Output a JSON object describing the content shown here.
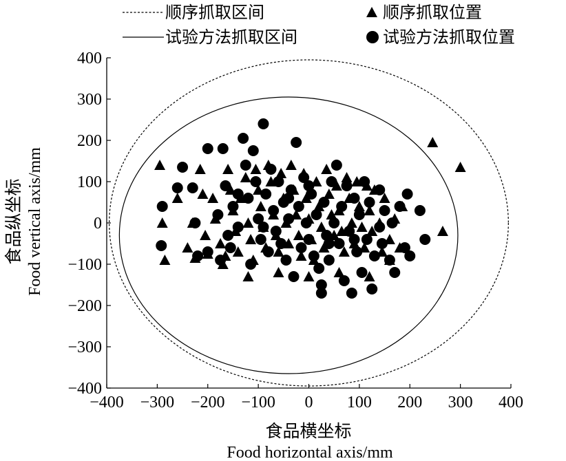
{
  "chart_data": {
    "type": "scatter",
    "title": "",
    "xlabel_cn": "食品横坐标",
    "xlabel_en": "Food horizontal axis/mm",
    "ylabel_cn": "食品纵坐标",
    "ylabel_en": "Food vertical axis/mm",
    "xlim": [
      -400,
      400
    ],
    "ylim": [
      -400,
      400
    ],
    "xticks": [
      -400,
      -300,
      -200,
      -100,
      0,
      100,
      200,
      300,
      400
    ],
    "yticks": [
      -400,
      -300,
      -200,
      -100,
      0,
      100,
      200,
      300,
      400
    ],
    "grid": false,
    "legend_position": "top",
    "legend": {
      "dashed_circle": "顺序抓取区间",
      "triangle": "顺序抓取位置",
      "solid_circle": "试验方法抓取区间",
      "dot": "试验方法抓取位置"
    },
    "regions": [
      {
        "name": "顺序抓取区间",
        "style": "dashed",
        "cx": 0,
        "cy": 0,
        "r": 395
      },
      {
        "name": "试验方法抓取区间",
        "style": "solid",
        "cx": -40,
        "cy": -30,
        "r": 335
      }
    ],
    "series": [
      {
        "name": "顺序抓取位置",
        "marker": "triangle",
        "points": [
          [
            -295,
            140
          ],
          [
            -290,
            0
          ],
          [
            -285,
            -90
          ],
          [
            -260,
            60
          ],
          [
            -240,
            -60
          ],
          [
            -230,
            0
          ],
          [
            -225,
            -85
          ],
          [
            -215,
            130
          ],
          [
            -210,
            70
          ],
          [
            -205,
            -30
          ],
          [
            -200,
            -75
          ],
          [
            -190,
            60
          ],
          [
            -185,
            10
          ],
          [
            -175,
            -50
          ],
          [
            -165,
            -80
          ],
          [
            -160,
            130
          ],
          [
            -155,
            80
          ],
          [
            -150,
            30
          ],
          [
            -145,
            -20
          ],
          [
            -140,
            -70
          ],
          [
            -135,
            60
          ],
          [
            -125,
            110
          ],
          [
            -120,
            0
          ],
          [
            -115,
            -40
          ],
          [
            -110,
            -90
          ],
          [
            -105,
            130
          ],
          [
            -100,
            80
          ],
          [
            -95,
            40
          ],
          [
            -90,
            -10
          ],
          [
            -85,
            -60
          ],
          [
            -80,
            140
          ],
          [
            -75,
            100
          ],
          [
            -70,
            20
          ],
          [
            -65,
            -30
          ],
          [
            -60,
            -70
          ],
          [
            -55,
            120
          ],
          [
            -50,
            60
          ],
          [
            -45,
            0
          ],
          [
            -40,
            -50
          ],
          [
            -35,
            140
          ],
          [
            -30,
            80
          ],
          [
            -25,
            20
          ],
          [
            -20,
            -30
          ],
          [
            -15,
            -80
          ],
          [
            -10,
            120
          ],
          [
            -5,
            60
          ],
          [
            0,
            10
          ],
          [
            5,
            -40
          ],
          [
            10,
            -90
          ],
          [
            15,
            100
          ],
          [
            20,
            40
          ],
          [
            25,
            -10
          ],
          [
            30,
            -60
          ],
          [
            35,
            130
          ],
          [
            40,
            70
          ],
          [
            45,
            20
          ],
          [
            50,
            -30
          ],
          [
            55,
            90
          ],
          [
            60,
            30
          ],
          [
            65,
            -20
          ],
          [
            70,
            -70
          ],
          [
            75,
            110
          ],
          [
            80,
            60
          ],
          [
            85,
            0
          ],
          [
            90,
            -50
          ],
          [
            95,
            100
          ],
          [
            100,
            40
          ],
          [
            105,
            -10
          ],
          [
            110,
            -60
          ],
          [
            115,
            90
          ],
          [
            120,
            30
          ],
          [
            125,
            -20
          ],
          [
            130,
            80
          ],
          [
            140,
            0
          ],
          [
            145,
            -70
          ],
          [
            150,
            60
          ],
          [
            160,
            -40
          ],
          [
            170,
            10
          ],
          [
            180,
            -60
          ],
          [
            185,
            40
          ],
          [
            245,
            195
          ],
          [
            265,
            -20
          ],
          [
            300,
            135
          ],
          [
            -170,
            -100
          ],
          [
            -120,
            -130
          ],
          [
            -60,
            -120
          ],
          [
            0,
            -130
          ],
          [
            60,
            -120
          ],
          [
            120,
            -130
          ],
          [
            160,
            -90
          ]
        ]
      },
      {
        "name": "试验方法抓取位置",
        "marker": "dot",
        "points": [
          [
            -290,
            40
          ],
          [
            -292,
            -55
          ],
          [
            -260,
            85
          ],
          [
            -250,
            135
          ],
          [
            -230,
            85
          ],
          [
            -225,
            0
          ],
          [
            -220,
            -80
          ],
          [
            -200,
            180
          ],
          [
            -180,
            20
          ],
          [
            -175,
            -90
          ],
          [
            -170,
            180
          ],
          [
            -165,
            90
          ],
          [
            -160,
            -30
          ],
          [
            -155,
            -60
          ],
          [
            -150,
            40
          ],
          [
            -140,
            -10
          ],
          [
            -130,
            205
          ],
          [
            -125,
            140
          ],
          [
            -120,
            60
          ],
          [
            -115,
            -100
          ],
          [
            -110,
            175
          ],
          [
            -105,
            100
          ],
          [
            -100,
            10
          ],
          [
            -95,
            -40
          ],
          [
            -90,
            240
          ],
          [
            -85,
            70
          ],
          [
            -80,
            -70
          ],
          [
            -75,
            130
          ],
          [
            -70,
            30
          ],
          [
            -65,
            -20
          ],
          [
            -60,
            100
          ],
          [
            -55,
            -50
          ],
          [
            -50,
            50
          ],
          [
            -45,
            -90
          ],
          [
            -40,
            10
          ],
          [
            -35,
            80
          ],
          [
            -30,
            -130
          ],
          [
            -25,
            195
          ],
          [
            -20,
            40
          ],
          [
            -15,
            -60
          ],
          [
            -10,
            110
          ],
          [
            -5,
            0
          ],
          [
            0,
            -40
          ],
          [
            5,
            70
          ],
          [
            10,
            -80
          ],
          [
            15,
            20
          ],
          [
            20,
            -110
          ],
          [
            25,
            -150
          ],
          [
            25,
            -170
          ],
          [
            30,
            50
          ],
          [
            35,
            -30
          ],
          [
            40,
            -90
          ],
          [
            45,
            100
          ],
          [
            50,
            0
          ],
          [
            55,
            140
          ],
          [
            60,
            -50
          ],
          [
            65,
            40
          ],
          [
            70,
            -140
          ],
          [
            75,
            90
          ],
          [
            80,
            -20
          ],
          [
            85,
            -170
          ],
          [
            90,
            60
          ],
          [
            95,
            -70
          ],
          [
            100,
            20
          ],
          [
            105,
            -120
          ],
          [
            110,
            100
          ],
          [
            115,
            -40
          ],
          [
            120,
            50
          ],
          [
            125,
            -160
          ],
          [
            130,
            -80
          ],
          [
            140,
            -10
          ],
          [
            145,
            -50
          ],
          [
            150,
            30
          ],
          [
            160,
            -90
          ],
          [
            165,
            0
          ],
          [
            170,
            -120
          ],
          [
            180,
            40
          ],
          [
            190,
            -60
          ],
          [
            195,
            70
          ],
          [
            200,
            -80
          ],
          [
            220,
            30
          ],
          [
            230,
            -40
          ],
          [
            -200,
            -70
          ],
          [
            -140,
            70
          ],
          [
            -90,
            -10
          ],
          [
            -40,
            60
          ],
          [
            0,
            90
          ],
          [
            40,
            -50
          ],
          [
            90,
            -40
          ],
          [
            140,
            80
          ]
        ]
      }
    ]
  }
}
